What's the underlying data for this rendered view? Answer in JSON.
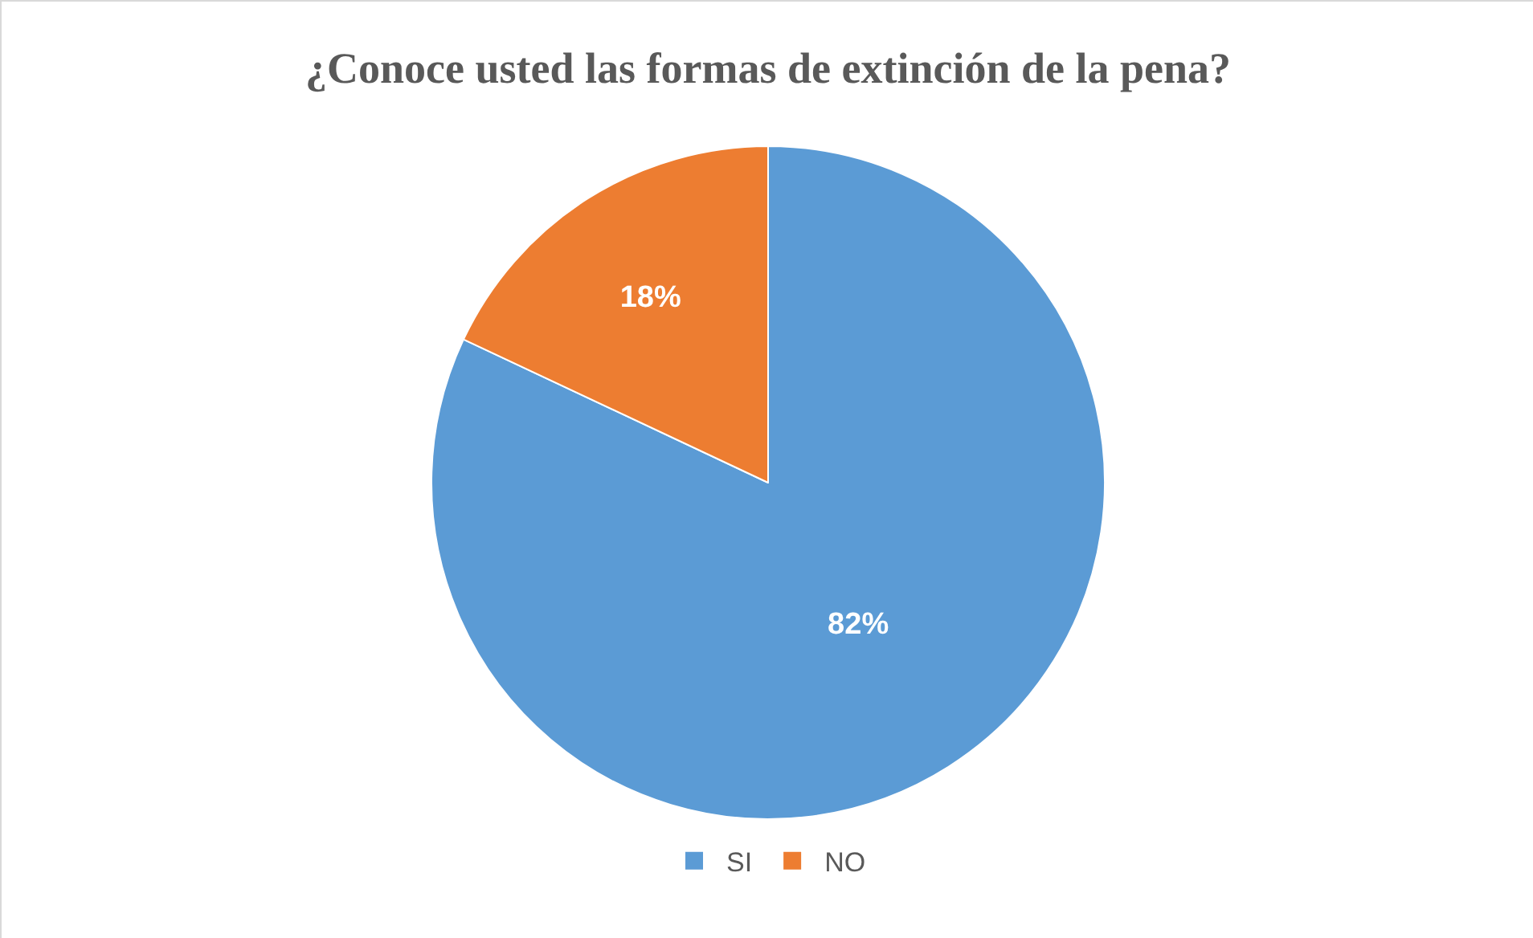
{
  "chart_data": {
    "type": "pie",
    "title": "¿Conoce usted las formas de extinción de la pena?",
    "categories": [
      "SI",
      "NO"
    ],
    "values": [
      82,
      18
    ],
    "colors": [
      "#5b9bd5",
      "#ed7d31"
    ],
    "value_labels": [
      "82%",
      "18%"
    ],
    "legend": "bottom"
  }
}
